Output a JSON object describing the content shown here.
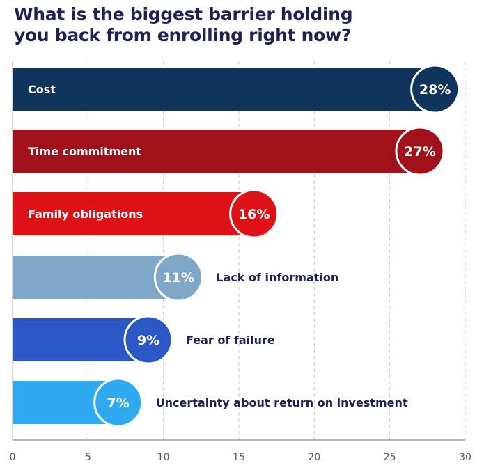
{
  "title_lines": [
    "What is the biggest barrier holding",
    "you back from enrolling right now?"
  ],
  "chart_data": {
    "type": "bar",
    "orientation": "horizontal",
    "categories": [
      "Cost",
      "Time commitment",
      "Family obligations",
      "Lack of information",
      "Fear of failure",
      "Uncertainty about return on investment"
    ],
    "values": [
      28,
      27,
      16,
      11,
      9,
      7
    ],
    "value_labels": [
      "28%",
      "27%",
      "16%",
      "11%",
      "9%",
      "7%"
    ],
    "colors": [
      "#0f355c",
      "#a0111a",
      "#de1116",
      "#7ea7c8",
      "#2b57c7",
      "#2fa9ef"
    ],
    "label_inside": [
      true,
      true,
      true,
      false,
      false,
      false
    ],
    "x_ticks": [
      "0",
      "5",
      "10",
      "15",
      "20",
      "25",
      "30"
    ],
    "xlim": [
      0,
      30
    ],
    "grid": "vertical dashed",
    "xlabel": "",
    "ylabel": ""
  }
}
